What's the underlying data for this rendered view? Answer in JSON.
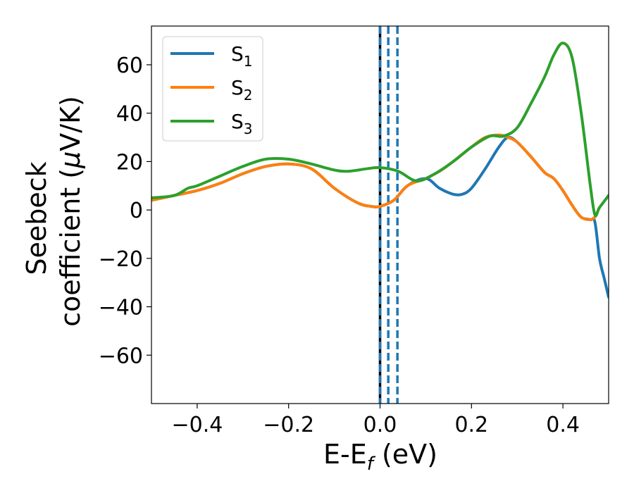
{
  "chart_data": {
    "type": "line",
    "xlabel": "E-E",
    "xlabel_sub": "f",
    "xlabel_unit": " (eV)",
    "ylabel_line1": "Seebeck",
    "ylabel_line2": "coefficient  (",
    "ylabel_mu": "μ",
    "ylabel_unit": "V/K)",
    "xlim": [
      -0.5,
      0.5
    ],
    "ylim": [
      -80,
      76
    ],
    "xticks": [
      -0.4,
      -0.2,
      0.0,
      0.2,
      0.4
    ],
    "xtick_labels": [
      "−0.4",
      "−0.2",
      "0.0",
      "0.2",
      "0.4"
    ],
    "yticks": [
      -60,
      -40,
      -20,
      0,
      20,
      40,
      60
    ],
    "ytick_labels": [
      "−60",
      "−40",
      "−20",
      "0",
      "20",
      "40",
      "60"
    ],
    "legend_position": "top-left",
    "vlines": [
      {
        "x": 0.0,
        "color": "#000000",
        "style": "solid"
      },
      {
        "x": 0.0,
        "color": "#1f77b4",
        "style": "dashed"
      },
      {
        "x": 0.018,
        "color": "#1f77b4",
        "style": "dashed"
      },
      {
        "x": 0.038,
        "color": "#1f77b4",
        "style": "dashed"
      }
    ],
    "series": [
      {
        "name": "S",
        "sub": "1",
        "color": "#1f77b4",
        "x": [
          -0.5,
          -0.45,
          -0.4,
          -0.35,
          -0.3,
          -0.25,
          -0.2,
          -0.15,
          -0.1,
          -0.05,
          -0.02,
          0.0,
          0.03,
          0.06,
          0.1,
          0.13,
          0.16,
          0.18,
          0.2,
          0.23,
          0.26,
          0.28,
          0.3,
          0.33,
          0.36,
          0.38,
          0.4,
          0.42,
          0.44,
          0.46,
          0.47,
          0.48,
          0.49,
          0.5
        ],
        "y": [
          4,
          6,
          8,
          11,
          15,
          18,
          19,
          17,
          9,
          3,
          1.5,
          1.5,
          4,
          10,
          13,
          9,
          6.5,
          6.5,
          9,
          17,
          26,
          30,
          28,
          22,
          15.5,
          13,
          8,
          2,
          -3,
          -4,
          -5,
          -20,
          -28,
          -36
        ]
      },
      {
        "name": "S",
        "sub": "2",
        "color": "#ff7f0e",
        "x": [
          -0.5,
          -0.45,
          -0.4,
          -0.35,
          -0.3,
          -0.25,
          -0.2,
          -0.15,
          -0.1,
          -0.05,
          -0.02,
          0.0,
          0.03,
          0.06,
          0.1,
          0.13,
          0.16,
          0.2,
          0.23,
          0.26,
          0.28,
          0.3,
          0.33,
          0.36,
          0.38,
          0.4,
          0.42,
          0.44,
          0.46,
          0.47
        ],
        "y": [
          4,
          6,
          8,
          11,
          15,
          18,
          19,
          17,
          9,
          3,
          1.5,
          1.5,
          4,
          10,
          13,
          16,
          20,
          26,
          30,
          31,
          30,
          28,
          22,
          15.5,
          13,
          8,
          2,
          -3,
          -4,
          -3
        ]
      },
      {
        "name": "S",
        "sub": "3",
        "color": "#2ca02c",
        "x": [
          -0.5,
          -0.45,
          -0.42,
          -0.4,
          -0.35,
          -0.3,
          -0.25,
          -0.2,
          -0.15,
          -0.1,
          -0.07,
          -0.03,
          0.0,
          0.04,
          0.08,
          0.12,
          0.16,
          0.2,
          0.24,
          0.27,
          0.3,
          0.33,
          0.36,
          0.38,
          0.4,
          0.42,
          0.44,
          0.46,
          0.47,
          0.48,
          0.5
        ],
        "y": [
          5,
          6,
          9,
          10,
          14,
          18,
          21,
          21,
          19,
          16.5,
          16,
          17,
          17.5,
          16,
          12,
          15,
          20,
          26,
          30.5,
          30.5,
          34,
          44,
          55,
          64,
          69,
          63,
          40,
          10,
          -2,
          1,
          6
        ]
      }
    ]
  }
}
